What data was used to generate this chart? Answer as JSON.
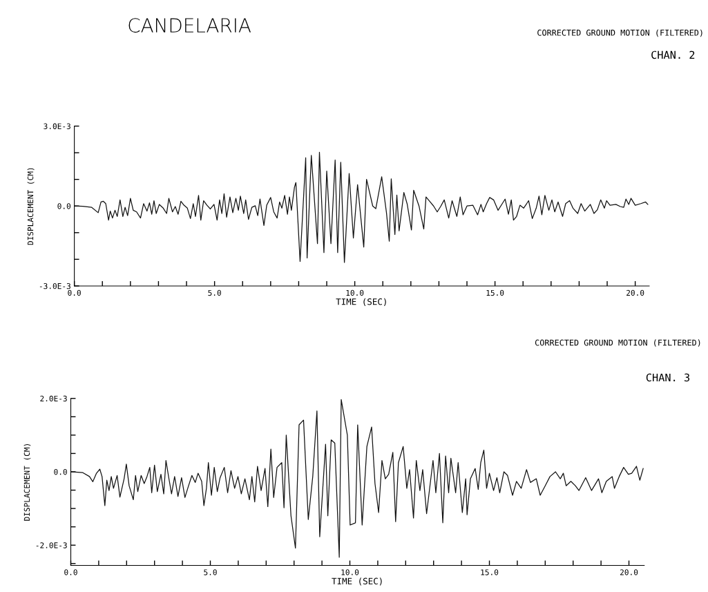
{
  "chart_data": [
    {
      "type": "line",
      "title": "CANDELARIA",
      "subtitle": "CORRECTED GROUND MOTION (FILTERED)",
      "annotations": [
        "CHAN. 2"
      ],
      "xlabel": "TIME (SEC)",
      "ylabel": "DISPLACEMENT (CM)",
      "xlim": [
        0,
        20.5
      ],
      "xticks": [
        {
          "value": 0,
          "label": "0.0"
        },
        {
          "value": 1,
          "label": null
        },
        {
          "value": 2,
          "label": null
        },
        {
          "value": 3,
          "label": null
        },
        {
          "value": 4,
          "label": null
        },
        {
          "value": 5,
          "label": "5.0"
        },
        {
          "value": 6,
          "label": null
        },
        {
          "value": 7,
          "label": null
        },
        {
          "value": 8,
          "label": null
        },
        {
          "value": 9,
          "label": null
        },
        {
          "value": 10,
          "label": "10.0"
        },
        {
          "value": 11,
          "label": null
        },
        {
          "value": 12,
          "label": null
        },
        {
          "value": 13,
          "label": null
        },
        {
          "value": 14,
          "label": null
        },
        {
          "value": 15,
          "label": "15.0"
        },
        {
          "value": 16,
          "label": null
        },
        {
          "value": 17,
          "label": null
        },
        {
          "value": 18,
          "label": null
        },
        {
          "value": 19,
          "label": null
        },
        {
          "value": 20,
          "label": "20.0"
        }
      ],
      "ylim": [
        -0.003,
        0.003
      ],
      "yticks": [
        {
          "value": -0.003,
          "label": "-3.0E-3"
        },
        {
          "value": -0.002,
          "label": null
        },
        {
          "value": -0.001,
          "label": null
        },
        {
          "value": 0,
          "label": "0.0"
        },
        {
          "value": 0.001,
          "label": null
        },
        {
          "value": 0.002,
          "label": null
        },
        {
          "value": 0.003,
          "label": "3.0E-3"
        }
      ],
      "series": [
        {
          "color": "#111111",
          "x": [
            0,
            0.3,
            0.62,
            0.85,
            0.95,
            1.03,
            1.12,
            1.22,
            1.28,
            1.36,
            1.45,
            1.53,
            1.63,
            1.73,
            1.81,
            1.9,
            2.0,
            2.1,
            2.22,
            2.36,
            2.47,
            2.59,
            2.68,
            2.76,
            2.84,
            2.92,
            3.03,
            3.17,
            3.29,
            3.37,
            3.5,
            3.6,
            3.7,
            3.8,
            3.91,
            4.03,
            4.14,
            4.24,
            4.32,
            4.43,
            4.51,
            4.61,
            4.73,
            4.85,
            4.98,
            5.09,
            5.18,
            5.26,
            5.34,
            5.43,
            5.55,
            5.65,
            5.76,
            5.85,
            5.92,
            6.04,
            6.11,
            6.21,
            6.33,
            6.45,
            6.54,
            6.62,
            6.76,
            6.86,
            7.0,
            7.11,
            7.23,
            7.32,
            7.4,
            7.5,
            7.6,
            7.67,
            7.74,
            7.85,
            7.9,
            8.05,
            8.25,
            8.3,
            8.45,
            8.67,
            8.74,
            8.9,
            9.0,
            9.15,
            9.3,
            9.39,
            9.5,
            9.63,
            9.8,
            9.95,
            10.1,
            10.32,
            10.42,
            10.64,
            10.75,
            10.96,
            11.13,
            11.23,
            11.3,
            11.43,
            11.5,
            11.58,
            11.75,
            11.87,
            12.02,
            12.1,
            12.29,
            12.46,
            12.54,
            12.69,
            12.81,
            12.94,
            13.06,
            13.19,
            13.35,
            13.47,
            13.64,
            13.76,
            13.86,
            14.0,
            14.21,
            14.38,
            14.5,
            14.58,
            14.7,
            14.81,
            14.95,
            15.11,
            15.26,
            15.36,
            15.48,
            15.58,
            15.66,
            15.77,
            15.89,
            16.02,
            16.2,
            16.33,
            16.47,
            16.57,
            16.67,
            16.78,
            16.92,
            17.03,
            17.13,
            17.25,
            17.41,
            17.52,
            17.66,
            17.78,
            17.95,
            18.07,
            18.2,
            18.4,
            18.53,
            18.65,
            18.77,
            18.9,
            18.98,
            19.1,
            19.31,
            19.47,
            19.59,
            19.67,
            19.77,
            19.85,
            20.0,
            20.2,
            20.37,
            20.45
          ],
          "values": [
            0,
            -1e-05,
            -5e-05,
            -0.00025,
            0.00015,
            0.00018,
            9e-05,
            -0.00053,
            -0.00019,
            -0.00045,
            -0.00016,
            -0.00039,
            0.00023,
            -0.00039,
            -5e-05,
            -0.00036,
            0.00029,
            -0.00016,
            -0.00022,
            -0.00045,
            9e-05,
            -0.00019,
            0.00012,
            -0.00031,
            0.0002,
            -0.00028,
            6e-05,
            -8e-05,
            -0.00028,
            0.00029,
            -0.00022,
            -2e-05,
            -0.00031,
            0.00018,
            3e-05,
            -8e-05,
            -0.00047,
            9e-05,
            -0.00039,
            0.0004,
            -0.00053,
            0.0002,
            3e-05,
            -0.00011,
            6e-05,
            -0.00053,
            0.00023,
            -0.00028,
            0.00046,
            -0.00042,
            0.00034,
            -0.00025,
            0.00029,
            -0.00016,
            0.00037,
            -0.00028,
            0.00023,
            -0.0005,
            -5e-05,
            1e-05,
            -0.00036,
            0.00026,
            -0.00073,
            3e-05,
            0.00032,
            -0.00022,
            -0.00045,
            0.00015,
            -8e-05,
            0.0004,
            -0.00031,
            0.00034,
            -0.00016,
            0.00071,
            0.00088,
            -0.00208,
            0.00181,
            -0.00195,
            0.0019,
            -0.00141,
            0.00202,
            -0.00175,
            0.00131,
            -0.00141,
            0.00173,
            -0.00175,
            0.00164,
            -0.00212,
            0.00122,
            -0.0012,
            0.0008,
            -0.00154,
            0.001,
            0,
            -0.0001,
            0.0011,
            -0.00025,
            -0.00132,
            0.00102,
            -0.00107,
            0.00041,
            -0.00093,
            0.00051,
            7e-05,
            -0.0009,
            0.00059,
            0,
            -0.00086,
            0.00034,
            0.00015,
            0,
            -0.00022,
            -2e-05,
            0.00023,
            -0.00045,
            0.0002,
            -0.00039,
            0.00034,
            -0.00033,
            0,
            3e-05,
            -0.00033,
            6e-05,
            -0.00022,
            9e-05,
            0.00032,
            0.00023,
            -0.00016,
            9e-05,
            0.00026,
            -0.00031,
            0.00023,
            -0.00053,
            -0.00039,
            3e-05,
            -8e-05,
            0.0002,
            -0.00047,
            -8e-05,
            0.00037,
            -0.00033,
            0.0004,
            -0.00016,
            0.00023,
            -0.00022,
            0.00015,
            -0.00039,
            9e-05,
            0.0002,
            -8e-05,
            -0.00028,
            9e-05,
            -0.00019,
            6e-05,
            -0.00028,
            -0.00014,
            0.00023,
            -8e-05,
            0.0002,
            3e-05,
            6e-05,
            -2e-05,
            -5e-05,
            0.00026,
            6e-05,
            0.00029,
            3e-05,
            9e-05,
            0.00015,
            6e-05
          ]
        }
      ]
    },
    {
      "type": "line",
      "subtitle": "CORRECTED GROUND MOTION (FILTERED)",
      "annotations": [
        "CHAN. 3"
      ],
      "xlabel": "TIME (SEC)",
      "ylabel": "DISPLACEMENT (CM)",
      "xlim": [
        0,
        20.55
      ],
      "xticks": [
        {
          "value": 0,
          "label": "0.0"
        },
        {
          "value": 1,
          "label": null
        },
        {
          "value": 2,
          "label": null
        },
        {
          "value": 3,
          "label": null
        },
        {
          "value": 4,
          "label": null
        },
        {
          "value": 5,
          "label": "5.0"
        },
        {
          "value": 6,
          "label": null
        },
        {
          "value": 7,
          "label": null
        },
        {
          "value": 8,
          "label": null
        },
        {
          "value": 9,
          "label": null
        },
        {
          "value": 10,
          "label": "10.0"
        },
        {
          "value": 11,
          "label": null
        },
        {
          "value": 12,
          "label": null
        },
        {
          "value": 13,
          "label": null
        },
        {
          "value": 14,
          "label": null
        },
        {
          "value": 15,
          "label": "15.0"
        },
        {
          "value": 16,
          "label": null
        },
        {
          "value": 17,
          "label": null
        },
        {
          "value": 18,
          "label": null
        },
        {
          "value": 19,
          "label": null
        },
        {
          "value": 20,
          "label": "20.0"
        }
      ],
      "ylim": [
        -0.00255,
        0.002
      ],
      "yticks": [
        {
          "value": -0.0025,
          "label": null
        },
        {
          "value": -0.002,
          "label": "-2.0E-3"
        },
        {
          "value": -0.0015,
          "label": null
        },
        {
          "value": -0.001,
          "label": null
        },
        {
          "value": -0.0005,
          "label": null
        },
        {
          "value": 0,
          "label": "0.0"
        },
        {
          "value": 0.0005,
          "label": null
        },
        {
          "value": 0.001,
          "label": null
        },
        {
          "value": 0.0015,
          "label": null
        },
        {
          "value": 0.002,
          "label": "2.0E-3"
        }
      ],
      "series": [
        {
          "color": "#111111",
          "x": [
            0,
            0.42,
            0.67,
            0.79,
            0.92,
            1.04,
            1.12,
            1.22,
            1.29,
            1.37,
            1.45,
            1.53,
            1.66,
            1.76,
            1.91,
            1.99,
            2.09,
            2.24,
            2.32,
            2.4,
            2.52,
            2.63,
            2.73,
            2.83,
            2.9,
            3.0,
            3.1,
            3.23,
            3.33,
            3.41,
            3.51,
            3.61,
            3.72,
            3.84,
            3.97,
            4.09,
            4.22,
            4.34,
            4.46,
            4.56,
            4.69,
            4.77,
            4.86,
            4.93,
            5.04,
            5.14,
            5.25,
            5.35,
            5.5,
            5.62,
            5.74,
            5.87,
            5.99,
            6.11,
            6.24,
            6.4,
            6.49,
            6.59,
            6.69,
            6.82,
            6.96,
            7.06,
            7.17,
            7.27,
            7.39,
            7.56,
            7.64,
            7.72,
            7.89,
            8.05,
            8.18,
            8.34,
            8.51,
            8.67,
            8.82,
            8.92,
            9.13,
            9.21,
            9.33,
            9.46,
            9.62,
            9.69,
            9.91,
            10.01,
            10.2,
            10.28,
            10.44,
            10.61,
            10.78,
            10.9,
            11.03,
            11.15,
            11.27,
            11.39,
            11.54,
            11.64,
            11.74,
            11.91,
            12.04,
            12.14,
            12.28,
            12.38,
            12.51,
            12.61,
            12.75,
            12.98,
            13.08,
            13.21,
            13.33,
            13.43,
            13.54,
            13.62,
            13.79,
            13.88,
            14.03,
            14.15,
            14.2,
            14.32,
            14.49,
            14.6,
            14.69,
            14.8,
            14.9,
            15.0,
            15.15,
            15.27,
            15.37,
            15.52,
            15.65,
            15.83,
            15.97,
            16.14,
            16.33,
            16.47,
            16.68,
            16.82,
            17.0,
            17.17,
            17.37,
            17.54,
            17.65,
            17.75,
            17.92,
            18.08,
            18.21,
            18.45,
            18.66,
            18.91,
            19.03,
            19.19,
            19.4,
            19.48,
            19.65,
            19.81,
            19.98,
            20.1,
            20.27,
            20.39,
            20.51
          ],
          "values": [
            0,
            -2e-05,
            -0.00013,
            -0.00027,
            -4e-05,
            7e-05,
            -0.00013,
            -0.00092,
            -0.00023,
            -0.00051,
            -0.00013,
            -0.00045,
            -0.0001,
            -0.00069,
            -0.00019,
            0.00021,
            -0.00038,
            -0.00076,
            -0.0001,
            -0.00054,
            -0.0001,
            -0.00032,
            -0.00013,
            0.00012,
            -0.00057,
            0.00018,
            -0.00054,
            -7e-05,
            -0.0006,
            0.00031,
            -0.00016,
            -0.0006,
            -0.00013,
            -0.00067,
            -0.00016,
            -0.0007,
            -0.00038,
            -0.0001,
            -0.00029,
            -4e-05,
            -0.00026,
            -0.00092,
            -0.00045,
            0.00025,
            -0.00064,
            0.00012,
            -0.00054,
            -0.00016,
            0.00012,
            -0.00057,
            3e-05,
            -0.00045,
            -0.00013,
            -0.0006,
            -0.00019,
            -0.00076,
            -0.00013,
            -0.00082,
            0.00015,
            -0.00051,
            9e-05,
            -0.00095,
            0.00062,
            -0.0007,
            0.00012,
            0.00025,
            -0.00098,
            0.001,
            -0.0012,
            -0.00208,
            0.00128,
            0.00141,
            -0.0013,
            -0.00013,
            0.00166,
            -0.00177,
            0.00075,
            -0.0012,
            0.00087,
            0.00078,
            -0.00233,
            0.00197,
            0.001,
            -0.00145,
            -0.00139,
            0.00128,
            -0.00145,
            0.00069,
            0.00122,
            -0.00032,
            -0.00111,
            0.00031,
            -0.00019,
            -7e-05,
            0.00053,
            -0.00136,
            0.00025,
            0.00069,
            -0.00045,
            6e-05,
            -0.00126,
            0.00031,
            -0.00051,
            6e-05,
            -0.00114,
            0.00031,
            -0.00057,
            0.0005,
            -0.00139,
            0.00043,
            -0.00057,
            0.00037,
            -0.00057,
            0.00025,
            -0.00111,
            -0.00019,
            -0.00117,
            -0.00019,
            9e-05,
            -0.00048,
            0.00025,
            0.00059,
            -0.00045,
            -4e-05,
            -0.00051,
            -0.00016,
            -0.00057,
            0,
            -0.0001,
            -0.00064,
            -0.00026,
            -0.00045,
            6e-05,
            -0.00029,
            -0.00019,
            -0.00064,
            -0.00038,
            -0.00013,
            0,
            -0.00019,
            -4e-05,
            -0.00038,
            -0.00026,
            -0.00038,
            -0.00051,
            -0.00016,
            -0.00051,
            -0.00019,
            -0.00057,
            -0.00026,
            -0.00013,
            -0.00045,
            -0.00013,
            0.00012,
            -7e-05,
            -4e-05,
            0.00015,
            -0.00023,
            9e-05
          ]
        }
      ]
    }
  ]
}
